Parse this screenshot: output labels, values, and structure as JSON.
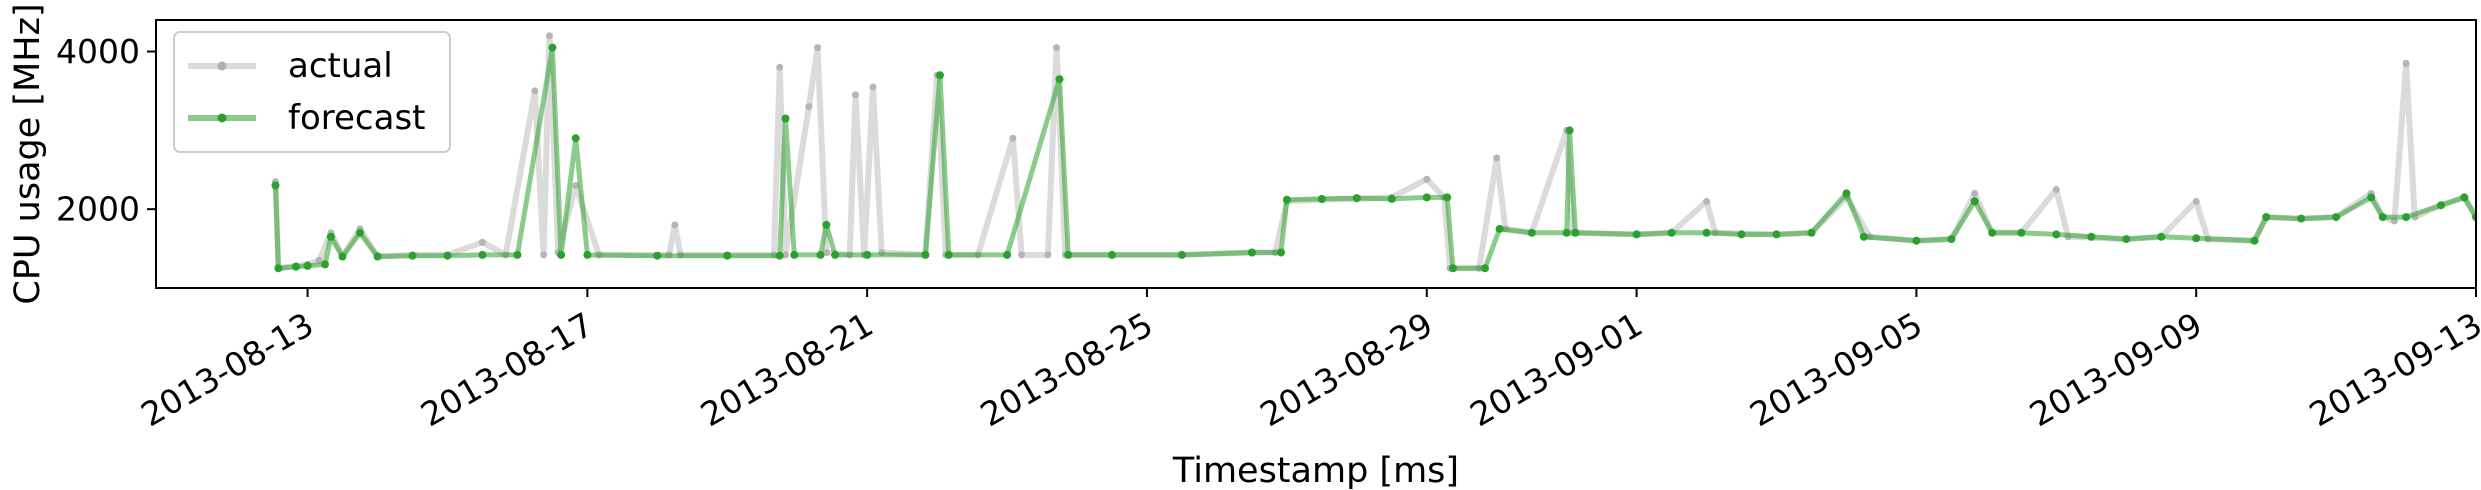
{
  "chart_data": {
    "type": "line",
    "title": "",
    "xlabel": "Timestamp [ms]",
    "ylabel": "CPU usage [MHz]",
    "x_type": "date",
    "xlim": [
      "2013-08-10T20:00",
      "2013-09-13T00:00"
    ],
    "ylim": [
      1000,
      4400
    ],
    "xticks": [
      "2013-08-13",
      "2013-08-17",
      "2013-08-21",
      "2013-08-25",
      "2013-08-29",
      "2013-09-01",
      "2013-09-05",
      "2013-09-09",
      "2013-09-13"
    ],
    "yticks": [
      2000,
      4000
    ],
    "ytick_labels": [
      "2000",
      "4000"
    ],
    "grid": false,
    "legend_position": "top-left",
    "series": [
      {
        "name": "actual",
        "color": "#b0b0b0",
        "points": [
          [
            "2013-08-12T13:00",
            2350
          ],
          [
            "2013-08-12T14:00",
            1250
          ],
          [
            "2013-08-12T20:00",
            1280
          ],
          [
            "2013-08-13T00:00",
            1300
          ],
          [
            "2013-08-13T04:00",
            1350
          ],
          [
            "2013-08-13T08:00",
            1700
          ],
          [
            "2013-08-13T12:00",
            1400
          ],
          [
            "2013-08-13T18:00",
            1750
          ],
          [
            "2013-08-14T00:00",
            1400
          ],
          [
            "2013-08-14T12:00",
            1420
          ],
          [
            "2013-08-15T00:00",
            1420
          ],
          [
            "2013-08-15T12:00",
            1580
          ],
          [
            "2013-08-15T20:00",
            1420
          ],
          [
            "2013-08-16T06:00",
            3500
          ],
          [
            "2013-08-16T09:00",
            1420
          ],
          [
            "2013-08-16T11:00",
            4200
          ],
          [
            "2013-08-16T14:00",
            1450
          ],
          [
            "2013-08-16T20:00",
            2300
          ],
          [
            "2013-08-17T04:00",
            1420
          ],
          [
            "2013-08-18T04:00",
            1420
          ],
          [
            "2013-08-18T06:00",
            1800
          ],
          [
            "2013-08-18T08:00",
            1420
          ],
          [
            "2013-08-19T00:00",
            1420
          ],
          [
            "2013-08-19T16:00",
            1420
          ],
          [
            "2013-08-19T18:00",
            3800
          ],
          [
            "2013-08-19T20:00",
            1420
          ],
          [
            "2013-08-20T04:00",
            3300
          ],
          [
            "2013-08-20T07:00",
            4050
          ],
          [
            "2013-08-20T10:00",
            1450
          ],
          [
            "2013-08-20T18:00",
            1420
          ],
          [
            "2013-08-20T20:00",
            3450
          ],
          [
            "2013-08-20T23:00",
            1420
          ],
          [
            "2013-08-21T02:00",
            3550
          ],
          [
            "2013-08-21T05:00",
            1450
          ],
          [
            "2013-08-21T20:00",
            1420
          ],
          [
            "2013-08-22T00:00",
            3700
          ],
          [
            "2013-08-22T03:00",
            1420
          ],
          [
            "2013-08-22T14:00",
            1420
          ],
          [
            "2013-08-23T02:00",
            2900
          ],
          [
            "2013-08-23T05:00",
            1420
          ],
          [
            "2013-08-23T14:00",
            1420
          ],
          [
            "2013-08-23T17:00",
            4050
          ],
          [
            "2013-08-23T20:00",
            1420
          ],
          [
            "2013-08-24T12:00",
            1420
          ],
          [
            "2013-08-25T12:00",
            1420
          ],
          [
            "2013-08-26T12:00",
            1450
          ],
          [
            "2013-08-26T20:00",
            1450
          ],
          [
            "2013-08-27T00:00",
            2100
          ],
          [
            "2013-08-27T12:00",
            2120
          ],
          [
            "2013-08-28T00:00",
            2130
          ],
          [
            "2013-08-28T12:00",
            2150
          ],
          [
            "2013-08-29T00:00",
            2380
          ],
          [
            "2013-08-29T06:00",
            2150
          ],
          [
            "2013-08-29T08:00",
            1250
          ],
          [
            "2013-08-29T18:00",
            1250
          ],
          [
            "2013-08-30T00:00",
            2650
          ],
          [
            "2013-08-30T03:00",
            1750
          ],
          [
            "2013-08-30T12:00",
            1700
          ],
          [
            "2013-08-31T00:00",
            3000
          ],
          [
            "2013-08-31T02:00",
            1700
          ],
          [
            "2013-09-01T00:00",
            1680
          ],
          [
            "2013-09-01T12:00",
            1700
          ],
          [
            "2013-09-02T00:00",
            2100
          ],
          [
            "2013-09-02T03:00",
            1700
          ],
          [
            "2013-09-03T00:00",
            1680
          ],
          [
            "2013-09-03T12:00",
            1700
          ],
          [
            "2013-09-04T00:00",
            2150
          ],
          [
            "2013-09-04T08:00",
            1650
          ],
          [
            "2013-09-05T00:00",
            1600
          ],
          [
            "2013-09-05T12:00",
            1620
          ],
          [
            "2013-09-05T20:00",
            2200
          ],
          [
            "2013-09-06T02:00",
            1700
          ],
          [
            "2013-09-06T12:00",
            1700
          ],
          [
            "2013-09-07T00:00",
            2250
          ],
          [
            "2013-09-07T04:00",
            1650
          ],
          [
            "2013-09-08T00:00",
            1620
          ],
          [
            "2013-09-08T12:00",
            1650
          ],
          [
            "2013-09-09T00:00",
            2100
          ],
          [
            "2013-09-09T04:00",
            1620
          ],
          [
            "2013-09-09T20:00",
            1600
          ],
          [
            "2013-09-10T00:00",
            1900
          ],
          [
            "2013-09-10T12:00",
            1880
          ],
          [
            "2013-09-11T00:00",
            1900
          ],
          [
            "2013-09-11T12:00",
            2200
          ],
          [
            "2013-09-11T16:00",
            1900
          ],
          [
            "2013-09-11T20:00",
            1850
          ],
          [
            "2013-09-12T00:00",
            3850
          ],
          [
            "2013-09-12T03:00",
            1900
          ],
          [
            "2013-09-12T12:00",
            2050
          ],
          [
            "2013-09-12T20:00",
            2150
          ],
          [
            "2013-09-13T00:00",
            1900
          ]
        ]
      },
      {
        "name": "forecast",
        "color": "#2ca02c",
        "points": [
          [
            "2013-08-12T13:00",
            2300
          ],
          [
            "2013-08-12T14:00",
            1250
          ],
          [
            "2013-08-12T20:00",
            1270
          ],
          [
            "2013-08-13T00:00",
            1280
          ],
          [
            "2013-08-13T06:00",
            1300
          ],
          [
            "2013-08-13T08:00",
            1650
          ],
          [
            "2013-08-13T12:00",
            1400
          ],
          [
            "2013-08-13T18:00",
            1700
          ],
          [
            "2013-08-14T00:00",
            1400
          ],
          [
            "2013-08-14T12:00",
            1410
          ],
          [
            "2013-08-15T00:00",
            1410
          ],
          [
            "2013-08-15T12:00",
            1420
          ],
          [
            "2013-08-16T00:00",
            1420
          ],
          [
            "2013-08-16T12:00",
            4050
          ],
          [
            "2013-08-16T15:00",
            1420
          ],
          [
            "2013-08-16T20:00",
            2900
          ],
          [
            "2013-08-17T00:00",
            1420
          ],
          [
            "2013-08-18T00:00",
            1410
          ],
          [
            "2013-08-19T00:00",
            1410
          ],
          [
            "2013-08-19T18:00",
            1410
          ],
          [
            "2013-08-19T20:00",
            3150
          ],
          [
            "2013-08-19T23:00",
            1420
          ],
          [
            "2013-08-20T08:00",
            1420
          ],
          [
            "2013-08-20T10:00",
            1800
          ],
          [
            "2013-08-20T13:00",
            1420
          ],
          [
            "2013-08-21T00:00",
            1420
          ],
          [
            "2013-08-21T20:00",
            1420
          ],
          [
            "2013-08-22T01:00",
            3700
          ],
          [
            "2013-08-22T04:00",
            1420
          ],
          [
            "2013-08-23T00:00",
            1420
          ],
          [
            "2013-08-23T18:00",
            3650
          ],
          [
            "2013-08-23T21:00",
            1420
          ],
          [
            "2013-08-24T12:00",
            1420
          ],
          [
            "2013-08-25T12:00",
            1420
          ],
          [
            "2013-08-26T12:00",
            1450
          ],
          [
            "2013-08-26T22:00",
            1450
          ],
          [
            "2013-08-27T00:00",
            2120
          ],
          [
            "2013-08-27T12:00",
            2130
          ],
          [
            "2013-08-28T00:00",
            2140
          ],
          [
            "2013-08-28T12:00",
            2130
          ],
          [
            "2013-08-29T00:00",
            2150
          ],
          [
            "2013-08-29T07:00",
            2150
          ],
          [
            "2013-08-29T09:00",
            1250
          ],
          [
            "2013-08-29T20:00",
            1250
          ],
          [
            "2013-08-30T01:00",
            1750
          ],
          [
            "2013-08-30T12:00",
            1700
          ],
          [
            "2013-08-31T00:00",
            1700
          ],
          [
            "2013-08-31T01:00",
            3000
          ],
          [
            "2013-08-31T03:00",
            1700
          ],
          [
            "2013-09-01T00:00",
            1680
          ],
          [
            "2013-09-01T12:00",
            1700
          ],
          [
            "2013-09-02T00:00",
            1700
          ],
          [
            "2013-09-02T12:00",
            1680
          ],
          [
            "2013-09-03T00:00",
            1680
          ],
          [
            "2013-09-03T12:00",
            1700
          ],
          [
            "2013-09-04T00:00",
            2200
          ],
          [
            "2013-09-04T06:00",
            1650
          ],
          [
            "2013-09-05T00:00",
            1600
          ],
          [
            "2013-09-05T12:00",
            1620
          ],
          [
            "2013-09-05T20:00",
            2100
          ],
          [
            "2013-09-06T02:00",
            1700
          ],
          [
            "2013-09-06T12:00",
            1700
          ],
          [
            "2013-09-07T00:00",
            1680
          ],
          [
            "2013-09-07T12:00",
            1650
          ],
          [
            "2013-09-08T00:00",
            1620
          ],
          [
            "2013-09-08T12:00",
            1650
          ],
          [
            "2013-09-09T00:00",
            1630
          ],
          [
            "2013-09-09T20:00",
            1600
          ],
          [
            "2013-09-10T00:00",
            1900
          ],
          [
            "2013-09-10T12:00",
            1880
          ],
          [
            "2013-09-11T00:00",
            1900
          ],
          [
            "2013-09-11T12:00",
            2150
          ],
          [
            "2013-09-11T16:00",
            1900
          ],
          [
            "2013-09-12T00:00",
            1900
          ],
          [
            "2013-09-12T12:00",
            2050
          ],
          [
            "2013-09-12T20:00",
            2150
          ],
          [
            "2013-09-13T00:00",
            1900
          ]
        ]
      }
    ]
  }
}
